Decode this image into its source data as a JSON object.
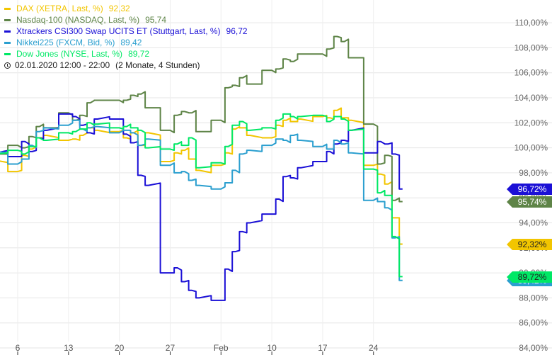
{
  "chart_data": {
    "type": "line",
    "y_axis_side": "right",
    "ylim": [
      84,
      111.5
    ],
    "ytick_labels": [
      "84,00%",
      "86,00%",
      "88,00%",
      "90,00%",
      "92,00%",
      "94,00%",
      "96,00%",
      "98,00%",
      "100,00%",
      "102,00%",
      "104,00%",
      "106,00%",
      "108,00%",
      "110,00%"
    ],
    "ytick_values": [
      84,
      86,
      88,
      90,
      92,
      94,
      96,
      98,
      100,
      102,
      104,
      106,
      108,
      110
    ],
    "xlim": [
      "2020-01-02",
      "2020-03-02"
    ],
    "x_ticks": [
      {
        "date": "2020-01-06",
        "label": "6"
      },
      {
        "date": "2020-01-13",
        "label": "13"
      },
      {
        "date": "2020-01-20",
        "label": "20"
      },
      {
        "date": "2020-01-27",
        "label": "27"
      },
      {
        "date": "2020-02-03",
        "label": "Feb"
      },
      {
        "date": "2020-02-10",
        "label": "10"
      },
      {
        "date": "2020-02-17",
        "label": "17"
      },
      {
        "date": "2020-02-24",
        "label": "24"
      }
    ],
    "grid": true,
    "legend_position": "top-left",
    "period_label": "02.01.2020 12:00 - 22:00",
    "period_span": "(2 Monate, 4 Stunden)",
    "series": [
      {
        "name": "DAX (XETRA, Last, %)",
        "last_label": "92,32",
        "end_badge": "92,32%",
        "color": "#f2c500",
        "x": [
          "2020-01-02",
          "2020-01-03",
          "2020-01-06",
          "2020-01-07",
          "2020-01-08",
          "2020-01-09",
          "2020-01-10",
          "2020-01-13",
          "2020-01-14",
          "2020-01-15",
          "2020-01-16",
          "2020-01-17",
          "2020-01-20",
          "2020-01-21",
          "2020-01-22",
          "2020-01-23",
          "2020-01-24",
          "2020-01-27",
          "2020-01-28",
          "2020-01-29",
          "2020-01-30",
          "2020-01-31",
          "2020-02-03",
          "2020-02-04",
          "2020-02-05",
          "2020-02-06",
          "2020-02-07",
          "2020-02-10",
          "2020-02-11",
          "2020-02-12",
          "2020-02-13",
          "2020-02-14",
          "2020-02-17",
          "2020-02-18",
          "2020-02-19",
          "2020-02-20",
          "2020-02-21",
          "2020-02-24",
          "2020-02-25",
          "2020-02-26",
          "2020-02-27",
          "2020-02-28"
        ],
        "y": [
          100.4,
          99.0,
          98.1,
          99.4,
          99.9,
          100.8,
          101.0,
          100.6,
          100.7,
          101.0,
          101.6,
          101.4,
          101.3,
          100.8,
          101.2,
          100.2,
          101.2,
          98.9,
          99.6,
          99.8,
          99.1,
          98.2,
          98.6,
          99.6,
          101.5,
          101.6,
          101.0,
          100.8,
          101.8,
          102.2,
          102.1,
          102.3,
          102.5,
          102.4,
          103.0,
          102.4,
          102.2,
          98.6,
          97.9,
          97.1,
          94.4,
          92.3
        ]
      },
      {
        "name": "Nasdaq-100 (NASDAQ, Last, %)",
        "last_label": "95,74",
        "end_badge": "95,74%",
        "color": "#5e8447",
        "x": [
          "2020-01-02",
          "2020-01-03",
          "2020-01-06",
          "2020-01-07",
          "2020-01-08",
          "2020-01-09",
          "2020-01-10",
          "2020-01-13",
          "2020-01-14",
          "2020-01-15",
          "2020-01-16",
          "2020-01-17",
          "2020-01-20",
          "2020-01-21",
          "2020-01-22",
          "2020-01-23",
          "2020-01-24",
          "2020-01-27",
          "2020-01-28",
          "2020-01-29",
          "2020-01-30",
          "2020-01-31",
          "2020-02-03",
          "2020-02-04",
          "2020-02-05",
          "2020-02-06",
          "2020-02-07",
          "2020-02-10",
          "2020-02-11",
          "2020-02-12",
          "2020-02-13",
          "2020-02-14",
          "2020-02-17",
          "2020-02-18",
          "2020-02-19",
          "2020-02-20",
          "2020-02-21",
          "2020-02-24",
          "2020-02-25",
          "2020-02-26",
          "2020-02-27",
          "2020-02-28"
        ],
        "y": [
          100.4,
          99.5,
          100.2,
          100.0,
          100.9,
          101.7,
          101.6,
          102.8,
          102.2,
          102.6,
          103.6,
          103.8,
          103.8,
          103.8,
          104.2,
          104.3,
          103.2,
          101.4,
          102.6,
          102.9,
          102.8,
          101.3,
          102.2,
          104.8,
          105.0,
          105.6,
          105.1,
          106.2,
          106.3,
          107.1,
          106.9,
          107.5,
          107.5,
          107.9,
          108.9,
          108.5,
          107.2,
          101.9,
          98.7,
          99.4,
          95.8,
          95.7
        ]
      },
      {
        "name": "Xtrackers CSI300 Swap UCITS ET (Stuttgart, Last, %)",
        "last_label": "96,72",
        "end_badge": "96,72%",
        "color": "#1b10d6",
        "x": [
          "2020-01-02",
          "2020-01-03",
          "2020-01-06",
          "2020-01-07",
          "2020-01-08",
          "2020-01-09",
          "2020-01-10",
          "2020-01-13",
          "2020-01-14",
          "2020-01-15",
          "2020-01-16",
          "2020-01-17",
          "2020-01-20",
          "2020-01-21",
          "2020-01-22",
          "2020-01-23",
          "2020-01-24",
          "2020-01-27",
          "2020-01-28",
          "2020-01-29",
          "2020-01-30",
          "2020-01-31",
          "2020-02-03",
          "2020-02-04",
          "2020-02-05",
          "2020-02-06",
          "2020-02-07",
          "2020-02-10",
          "2020-02-11",
          "2020-02-12",
          "2020-02-13",
          "2020-02-14",
          "2020-02-17",
          "2020-02-18",
          "2020-02-19",
          "2020-02-20",
          "2020-02-21",
          "2020-02-24",
          "2020-02-25",
          "2020-02-26",
          "2020-02-27",
          "2020-02-28"
        ],
        "y": [
          100.2,
          99.6,
          99.3,
          100.5,
          99.7,
          100.8,
          101.4,
          102.7,
          102.5,
          101.8,
          101.2,
          102.3,
          102.3,
          101.1,
          100.4,
          97.8,
          97.0,
          90.0,
          90.4,
          89.3,
          88.6,
          88.0,
          87.8,
          90.3,
          91.7,
          93.3,
          94.0,
          94.7,
          95.9,
          97.7,
          97.6,
          98.4,
          98.9,
          99.7,
          100.3,
          100.6,
          101.4,
          99.6,
          100.5,
          100.3,
          99.5,
          96.7
        ]
      },
      {
        "name": "Nikkei225 (FXCM, Bid, %)",
        "last_label": "89,42",
        "end_badge": "89,42%",
        "color": "#2b9fcf",
        "x": [
          "2020-01-02",
          "2020-01-03",
          "2020-01-06",
          "2020-01-07",
          "2020-01-08",
          "2020-01-09",
          "2020-01-10",
          "2020-01-13",
          "2020-01-14",
          "2020-01-15",
          "2020-01-16",
          "2020-01-17",
          "2020-01-20",
          "2020-01-21",
          "2020-01-22",
          "2020-01-23",
          "2020-01-24",
          "2020-01-27",
          "2020-01-28",
          "2020-01-29",
          "2020-01-30",
          "2020-01-31",
          "2020-02-03",
          "2020-02-04",
          "2020-02-05",
          "2020-02-06",
          "2020-02-07",
          "2020-02-10",
          "2020-02-11",
          "2020-02-12",
          "2020-02-13",
          "2020-02-14",
          "2020-02-17",
          "2020-02-18",
          "2020-02-19",
          "2020-02-20",
          "2020-02-21",
          "2020-02-24",
          "2020-02-25",
          "2020-02-26",
          "2020-02-27",
          "2020-02-28"
        ],
        "y": [
          99.9,
          99.7,
          98.7,
          99.1,
          100.2,
          101.3,
          101.6,
          101.8,
          102.2,
          101.5,
          101.6,
          101.7,
          101.2,
          101.4,
          101.2,
          100.2,
          100.7,
          98.6,
          98.0,
          98.1,
          97.4,
          97.0,
          96.7,
          97.2,
          98.2,
          99.5,
          99.8,
          100.2,
          100.7,
          100.6,
          101.0,
          100.6,
          100.1,
          99.9,
          100.6,
          100.3,
          99.6,
          95.8,
          95.7,
          95.2,
          92.8,
          89.4
        ]
      },
      {
        "name": "Dow Jones (NYSE, Last, %)",
        "last_label": "89,72",
        "end_badge": "89,72%",
        "color": "#00e865",
        "x": [
          "2020-01-02",
          "2020-01-03",
          "2020-01-06",
          "2020-01-07",
          "2020-01-08",
          "2020-01-09",
          "2020-01-10",
          "2020-01-13",
          "2020-01-14",
          "2020-01-15",
          "2020-01-16",
          "2020-01-17",
          "2020-01-20",
          "2020-01-21",
          "2020-01-22",
          "2020-01-23",
          "2020-01-24",
          "2020-01-27",
          "2020-01-28",
          "2020-01-29",
          "2020-01-30",
          "2020-01-31",
          "2020-02-03",
          "2020-02-04",
          "2020-02-05",
          "2020-02-06",
          "2020-02-07",
          "2020-02-10",
          "2020-02-11",
          "2020-02-12",
          "2020-02-13",
          "2020-02-14",
          "2020-02-17",
          "2020-02-18",
          "2020-02-19",
          "2020-02-20",
          "2020-02-21",
          "2020-02-24",
          "2020-02-25",
          "2020-02-26",
          "2020-02-27",
          "2020-02-28"
        ],
        "y": [
          100.6,
          99.5,
          99.8,
          99.5,
          100.1,
          100.8,
          100.6,
          101.2,
          101.3,
          101.5,
          102.0,
          101.9,
          101.6,
          101.7,
          101.6,
          101.4,
          100.0,
          99.9,
          100.3,
          100.2,
          100.8,
          98.4,
          98.8,
          100.1,
          101.8,
          102.1,
          101.4,
          101.6,
          102.2,
          102.7,
          102.5,
          102.5,
          102.6,
          102.1,
          102.5,
          102.3,
          101.4,
          98.3,
          96.4,
          96.2,
          92.9,
          89.7
        ]
      }
    ]
  }
}
